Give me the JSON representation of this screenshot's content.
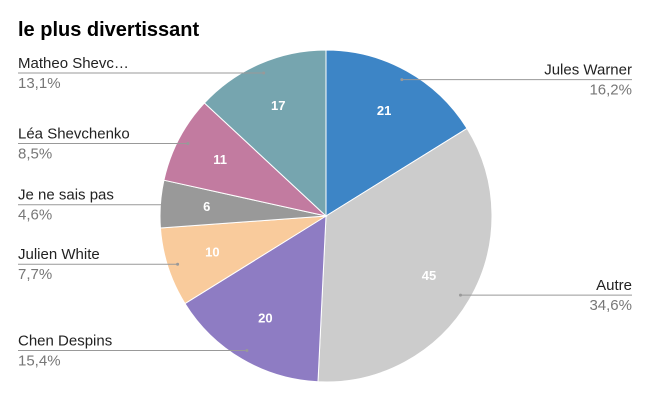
{
  "chart_data": {
    "type": "pie",
    "title": "le plus divertissant",
    "categories": [
      "Jules Warner",
      "Autre",
      "Chen Despins",
      "Julien White",
      "Je ne sais pas",
      "Léa Shevchenko",
      "Matheo Shevc…"
    ],
    "values": [
      21,
      45,
      20,
      10,
      6,
      11,
      17
    ],
    "percent_labels": [
      "16,2%",
      "34,6%",
      "15,4%",
      "7,7%",
      "4,6%",
      "8,5%",
      "13,1%"
    ],
    "colors": [
      "#3d85c6",
      "#cccccc",
      "#8e7cc3",
      "#f9cb9c",
      "#999999",
      "#c27ba0",
      "#76a5af"
    ]
  }
}
